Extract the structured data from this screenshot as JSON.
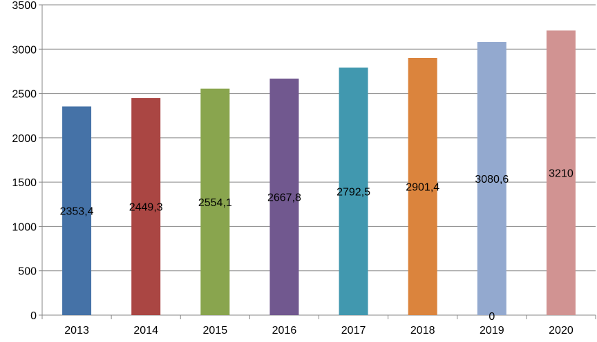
{
  "chart_data": {
    "type": "bar",
    "categories": [
      "2013",
      "2014",
      "2015",
      "2016",
      "2017",
      "2018",
      "2019",
      "2020"
    ],
    "values": [
      2353.4,
      2449.3,
      2554.1,
      2667.8,
      2792.5,
      2901.4,
      3080.6,
      3210
    ],
    "data_labels": [
      "2353,4",
      "2449,3",
      "2554,1",
      "2667,8",
      "2792,5",
      "2901,4",
      "3080,6",
      "3210"
    ],
    "extra_labels": [
      {
        "category": "2019",
        "text": "0"
      }
    ],
    "colors": [
      "#4572a7",
      "#aa4643",
      "#89a54e",
      "#71588f",
      "#4198af",
      "#db843d",
      "#93a9cf",
      "#d19392"
    ],
    "ylim": [
      0,
      3500
    ],
    "yticks": [
      0,
      500,
      1000,
      1500,
      2000,
      2500,
      3000,
      3500
    ],
    "grid": true,
    "gridline_color": "#878787",
    "title": "",
    "xlabel": "",
    "ylabel": ""
  }
}
